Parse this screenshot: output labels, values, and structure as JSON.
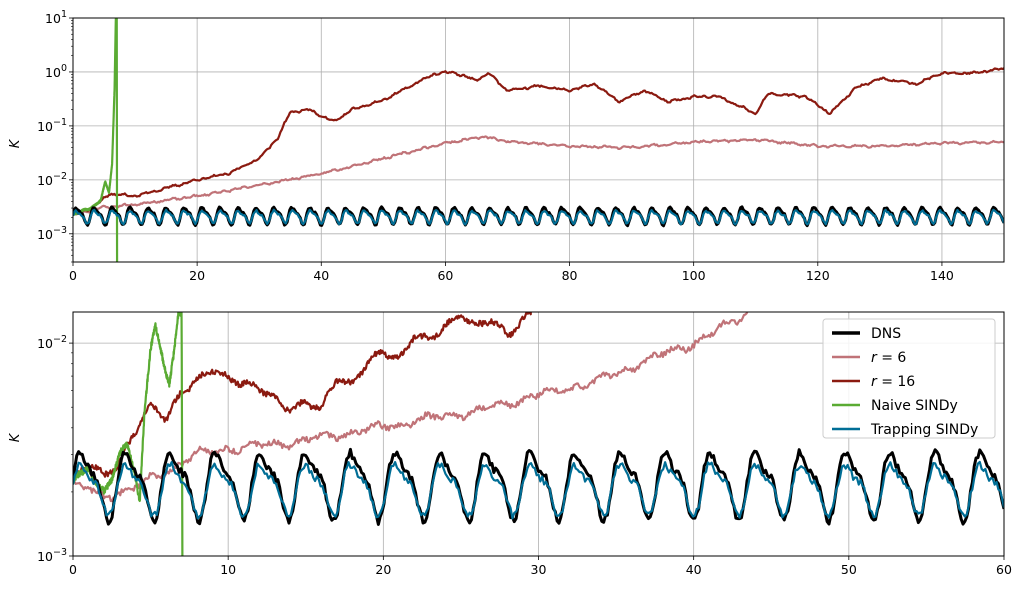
{
  "chart_data": [
    {
      "type": "line",
      "panel": "top",
      "ylabel": "K",
      "yscale": "log",
      "xlim": [
        0,
        150
      ],
      "ylim": [
        0.0003,
        10
      ],
      "xticks": [
        0,
        20,
        40,
        60,
        80,
        100,
        120,
        140
      ],
      "yticks": [
        0.001,
        0.01,
        0.1,
        1,
        10
      ],
      "ytick_labels": [
        [
          "10",
          "−3"
        ],
        [
          "10",
          "−2"
        ],
        [
          "10",
          "−1"
        ],
        [
          "10",
          "0"
        ],
        [
          "10",
          "1"
        ]
      ],
      "grid": true,
      "series": [
        {
          "key": "dns",
          "color": "#000000",
          "values_x": [
            0,
            150
          ],
          "base": 0.0022,
          "amp": 0.16,
          "period": 2.9
        },
        {
          "key": "r6",
          "color": "#c07378",
          "points": [
            [
              0,
              0.0022
            ],
            [
              4,
              0.003
            ],
            [
              10,
              0.0035
            ],
            [
              20,
              0.005
            ],
            [
              30,
              0.008
            ],
            [
              40,
              0.013
            ],
            [
              50,
              0.025
            ],
            [
              60,
              0.048
            ],
            [
              66,
              0.063
            ],
            [
              70,
              0.052
            ],
            [
              80,
              0.042
            ],
            [
              90,
              0.04
            ],
            [
              100,
              0.05
            ],
            [
              110,
              0.056
            ],
            [
              120,
              0.042
            ],
            [
              130,
              0.042
            ],
            [
              140,
              0.048
            ],
            [
              150,
              0.05
            ]
          ]
        },
        {
          "key": "r16",
          "color": "#8b1a10",
          "points": [
            [
              0,
              0.0022
            ],
            [
              3,
              0.003
            ],
            [
              6,
              0.0055
            ],
            [
              10,
              0.005
            ],
            [
              15,
              0.007
            ],
            [
              20,
              0.01
            ],
            [
              25,
              0.013
            ],
            [
              30,
              0.025
            ],
            [
              33,
              0.06
            ],
            [
              35,
              0.18
            ],
            [
              38,
              0.2
            ],
            [
              42,
              0.12
            ],
            [
              45,
              0.2
            ],
            [
              50,
              0.3
            ],
            [
              55,
              0.6
            ],
            [
              58,
              0.9
            ],
            [
              61,
              1.0
            ],
            [
              65,
              0.7
            ],
            [
              67,
              0.95
            ],
            [
              70,
              0.45
            ],
            [
              75,
              0.55
            ],
            [
              80,
              0.45
            ],
            [
              84,
              0.6
            ],
            [
              88,
              0.28
            ],
            [
              92,
              0.45
            ],
            [
              96,
              0.28
            ],
            [
              100,
              0.35
            ],
            [
              104,
              0.35
            ],
            [
              110,
              0.17
            ],
            [
              112,
              0.4
            ],
            [
              118,
              0.35
            ],
            [
              122,
              0.17
            ],
            [
              126,
              0.5
            ],
            [
              130,
              0.75
            ],
            [
              136,
              0.6
            ],
            [
              140,
              0.95
            ],
            [
              145,
              0.95
            ],
            [
              150,
              1.15
            ]
          ]
        },
        {
          "key": "naive",
          "color": "#5aab33",
          "points": [
            [
              0,
              0.0022
            ],
            [
              2,
              0.0028
            ],
            [
              3.5,
              0.0033
            ],
            [
              4.5,
              0.0042
            ],
            [
              5.2,
              0.009
            ],
            [
              5.8,
              0.006
            ],
            [
              6.3,
              0.02
            ],
            [
              6.7,
              0.5
            ],
            [
              6.9,
              10
            ],
            [
              7.05,
              10
            ],
            [
              7.1,
              0.0003
            ]
          ]
        },
        {
          "key": "trap",
          "color": "#006e96",
          "base": 0.0021,
          "amp": 0.12,
          "period": 2.9
        }
      ]
    },
    {
      "type": "line",
      "panel": "bottom",
      "ylabel": "K",
      "yscale": "log",
      "xlim": [
        0,
        60
      ],
      "ylim": [
        0.001,
        0.014
      ],
      "xticks": [
        0,
        10,
        20,
        30,
        40,
        50,
        60
      ],
      "yticks": [
        0.001,
        0.01
      ],
      "ytick_labels": [
        [
          "10",
          "−3"
        ],
        [
          "10",
          "−2"
        ]
      ],
      "grid": true,
      "legend": {
        "position": "top-right",
        "entries": [
          {
            "key": "dns",
            "label": "DNS",
            "color": "#000000"
          },
          {
            "key": "r6",
            "label": "r = 6",
            "color": "#c07378"
          },
          {
            "key": "r16",
            "label": "r = 16",
            "color": "#8b1a10"
          },
          {
            "key": "naive",
            "label": "Naive SINDy",
            "color": "#5aab33"
          },
          {
            "key": "trap",
            "label": "Trapping SINDy",
            "color": "#006e96"
          }
        ]
      },
      "series": [
        {
          "key": "dns",
          "color": "#000000",
          "base": 0.0022,
          "amp": 0.16,
          "period": 2.9
        },
        {
          "key": "r6",
          "color": "#c07378",
          "points": [
            [
              0,
              0.0022
            ],
            [
              2,
              0.0019
            ],
            [
              4,
              0.0021
            ],
            [
              6,
              0.0025
            ],
            [
              8,
              0.003
            ],
            [
              10,
              0.0032
            ],
            [
              14,
              0.0034
            ],
            [
              18,
              0.0038
            ],
            [
              22,
              0.0043
            ],
            [
              26,
              0.0048
            ],
            [
              30,
              0.0057
            ],
            [
              34,
              0.0067
            ],
            [
              37,
              0.0083
            ],
            [
              40,
              0.01
            ],
            [
              42,
              0.012
            ],
            [
              43.5,
              0.014
            ]
          ]
        },
        {
          "key": "r16",
          "color": "#8b1a10",
          "points": [
            [
              0,
              0.0023
            ],
            [
              1,
              0.0027
            ],
            [
              2,
              0.0024
            ],
            [
              3,
              0.0028
            ],
            [
              4,
              0.0038
            ],
            [
              5,
              0.005
            ],
            [
              6,
              0.0045
            ],
            [
              7,
              0.006
            ],
            [
              8,
              0.0065
            ],
            [
              9,
              0.0075
            ],
            [
              10,
              0.007
            ],
            [
              11,
              0.0065
            ],
            [
              12,
              0.006
            ],
            [
              13,
              0.0055
            ],
            [
              14,
              0.005
            ],
            [
              15,
              0.0052
            ],
            [
              16,
              0.0048
            ],
            [
              17,
              0.007
            ],
            [
              18,
              0.0065
            ],
            [
              19,
              0.008
            ],
            [
              20,
              0.009
            ],
            [
              21,
              0.0085
            ],
            [
              22,
              0.011
            ],
            [
              23,
              0.01
            ],
            [
              24,
              0.012
            ],
            [
              25,
              0.014
            ],
            [
              26,
              0.012
            ],
            [
              27,
              0.0125
            ],
            [
              28,
              0.011
            ],
            [
              29,
              0.013
            ],
            [
              29.5,
              0.014
            ]
          ]
        },
        {
          "key": "naive",
          "color": "#5aab33",
          "points": [
            [
              0,
              0.0022
            ],
            [
              1,
              0.0026
            ],
            [
              1.5,
              0.0021
            ],
            [
              2,
              0.002
            ],
            [
              2.5,
              0.0024
            ],
            [
              3,
              0.0031
            ],
            [
              3.5,
              0.0033
            ],
            [
              4,
              0.0024
            ],
            [
              4.3,
              0.0018
            ],
            [
              4.6,
              0.0045
            ],
            [
              5,
              0.009
            ],
            [
              5.3,
              0.012
            ],
            [
              5.6,
              0.01
            ],
            [
              5.9,
              0.008
            ],
            [
              6.2,
              0.0065
            ],
            [
              6.5,
              0.009
            ],
            [
              6.8,
              0.014
            ],
            [
              7.0,
              0.014
            ],
            [
              7.05,
              0.001
            ]
          ]
        },
        {
          "key": "trap",
          "color": "#006e96",
          "base": 0.0021,
          "amp": 0.12,
          "period": 2.9
        }
      ]
    }
  ]
}
